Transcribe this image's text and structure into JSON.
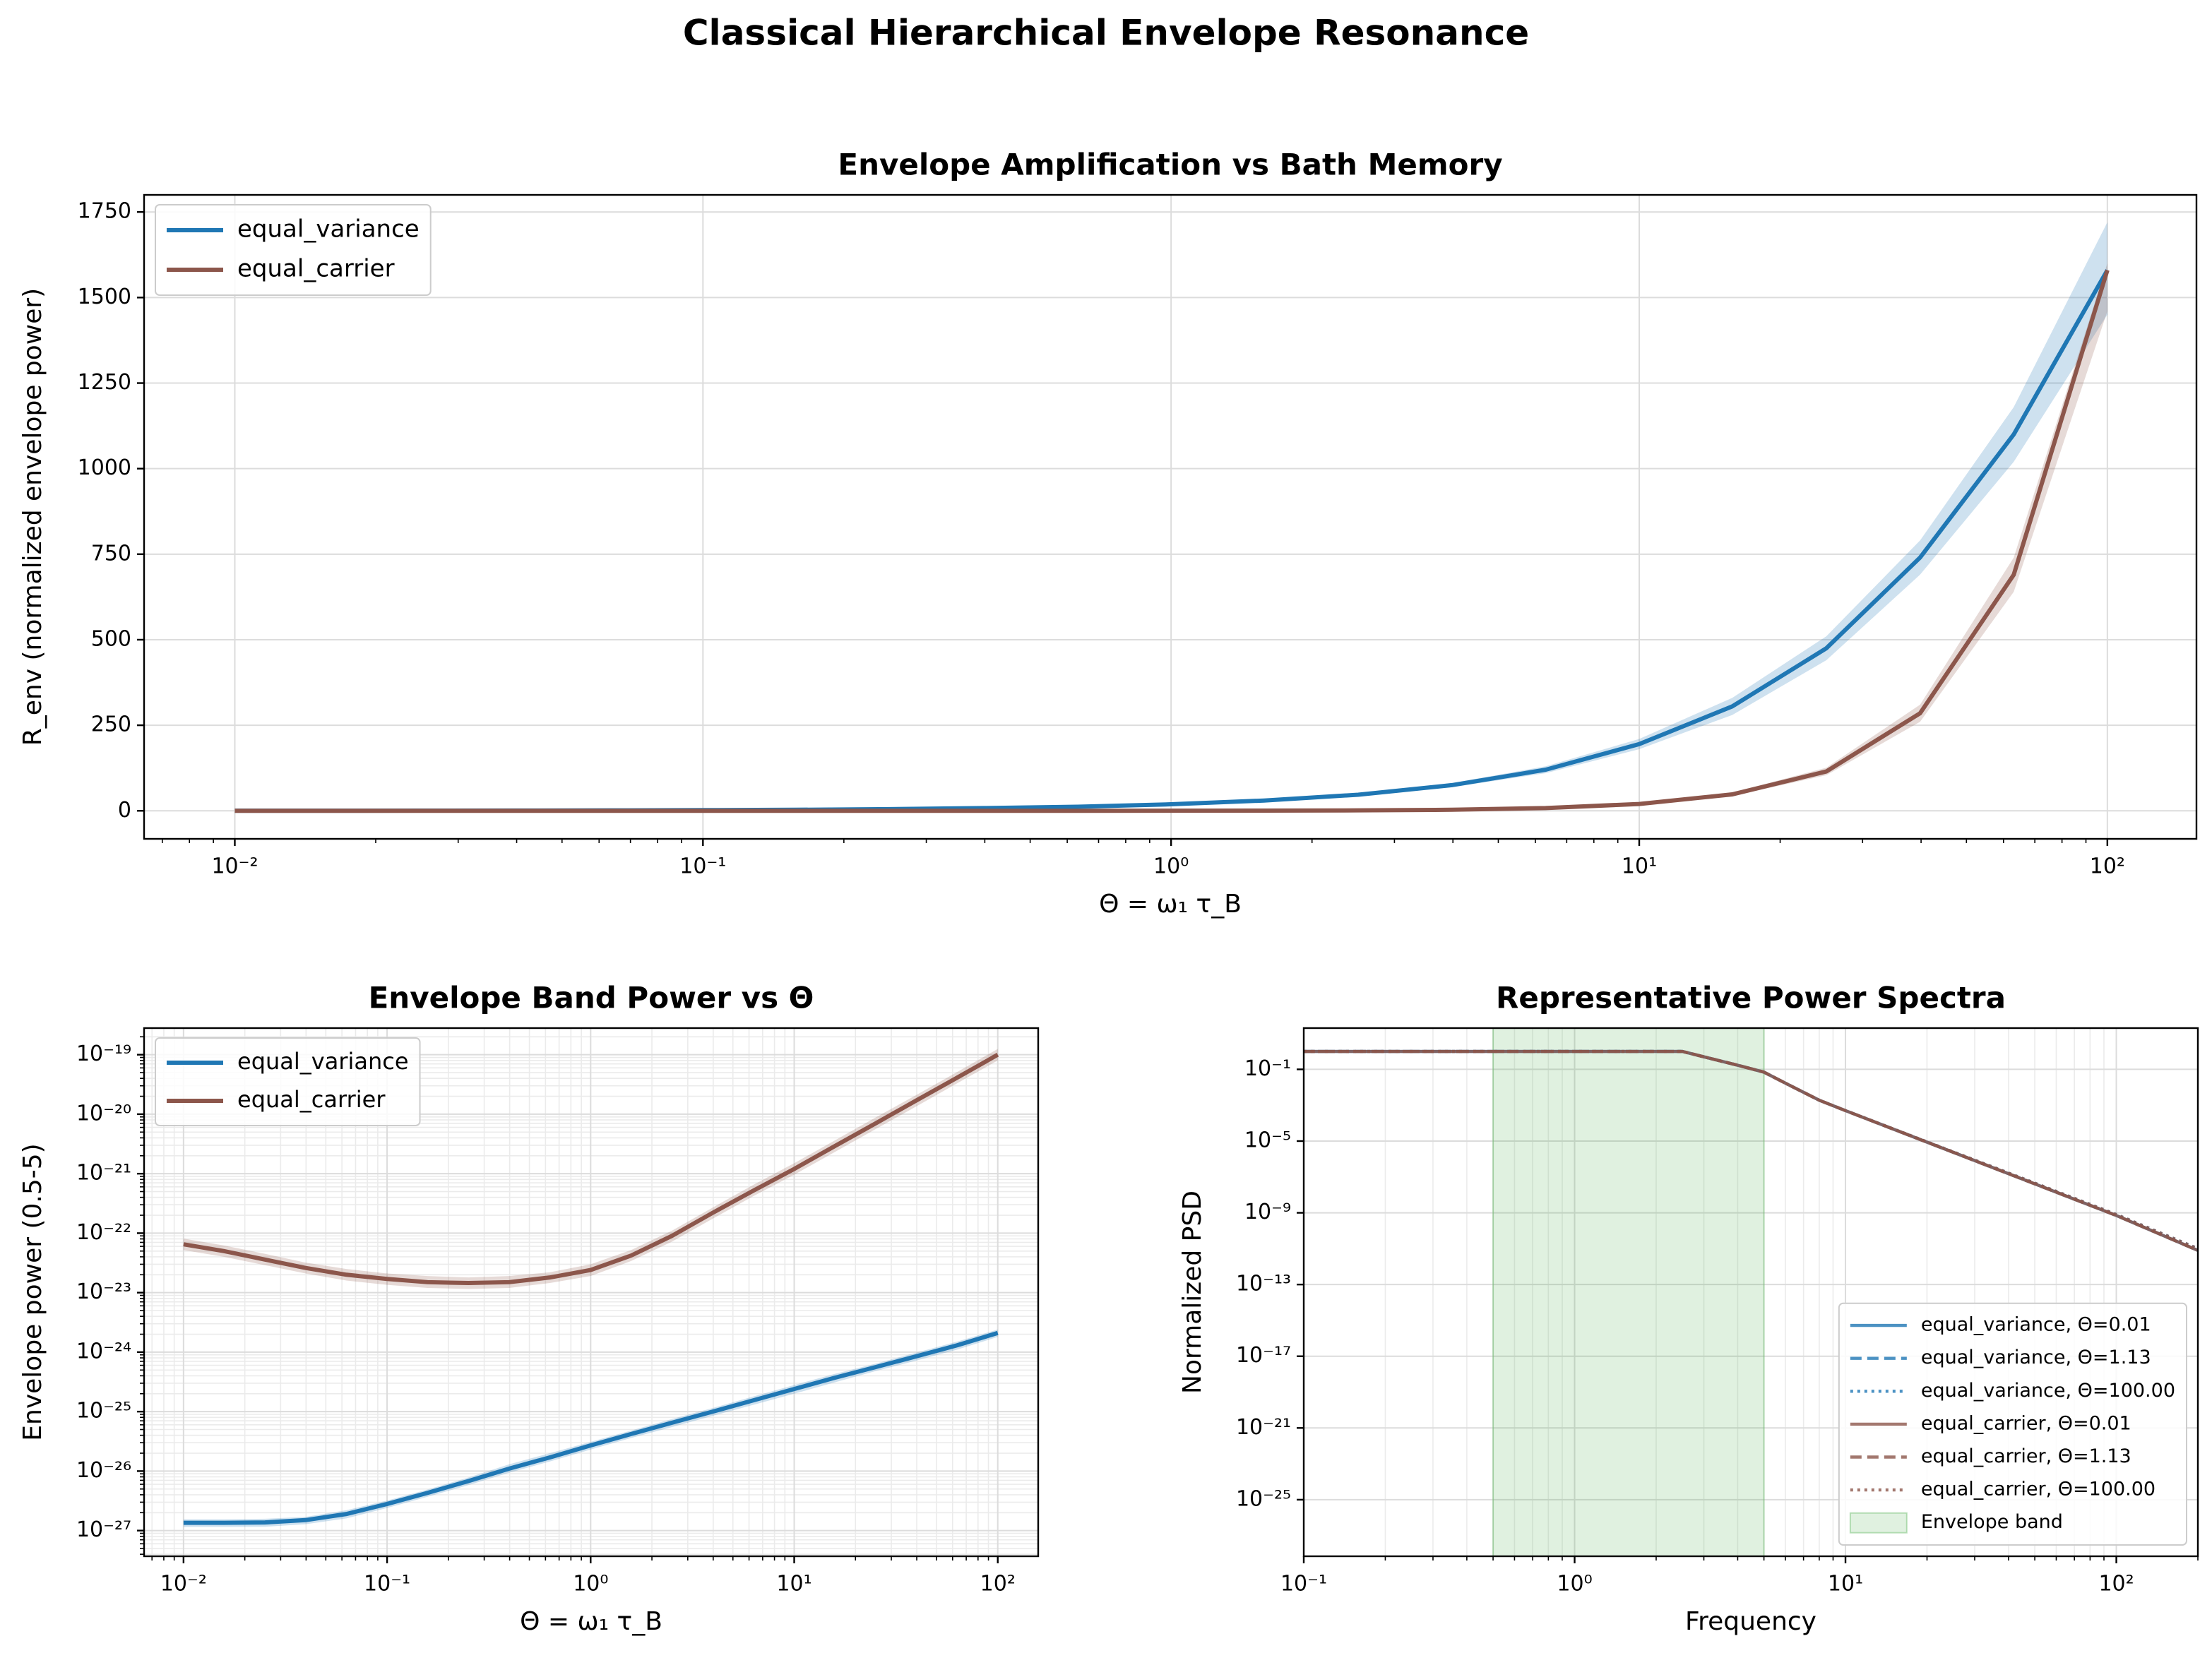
{
  "title": "Classical Hierarchical Envelope Resonance",
  "chart_data": [
    {
      "type": "line",
      "title": "Envelope Amplification vs Bath Memory",
      "xlabel": "Θ = ω₁ τ_B",
      "ylabel": "R_env (normalized envelope power)",
      "xscale": "log",
      "yscale": "linear",
      "grid": true,
      "minor_ticks": [
        "x"
      ],
      "minor_grid": [],
      "legend": "upper left",
      "xlim": [
        0.0064,
        155
      ],
      "ylim": [
        -82,
        1800
      ],
      "xticks": [
        {
          "value": 0.01,
          "label": "10⁻²"
        },
        {
          "value": 0.1,
          "label": "10⁻¹"
        },
        {
          "value": 1,
          "label": "10⁰"
        },
        {
          "value": 10,
          "label": "10¹"
        },
        {
          "value": 100,
          "label": "10²"
        }
      ],
      "yticks": [
        0,
        250,
        500,
        750,
        1000,
        1250,
        1500,
        1750
      ],
      "x": [
        0.01,
        0.0158,
        0.0251,
        0.0398,
        0.0631,
        0.1,
        0.158,
        0.251,
        0.398,
        0.631,
        1,
        1.58,
        2.51,
        3.98,
        6.31,
        10,
        15.8,
        25.1,
        39.8,
        63.1,
        100
      ],
      "series": [
        {
          "name": "equal_variance",
          "color": "#1f77b4",
          "style": "solid",
          "values": [
            0.2,
            0.3,
            0.5,
            0.8,
            1.2,
            2,
            3,
            5,
            8,
            12,
            19,
            30,
            47,
            75,
            120,
            195,
            305,
            475,
            740,
            1100,
            1580
          ],
          "band_low": [
            0.18,
            0.28,
            0.46,
            0.74,
            1.1,
            1.8,
            2.8,
            4.6,
            7.4,
            11,
            17.5,
            27.5,
            43,
            69,
            110,
            180,
            280,
            440,
            690,
            1020,
            1450
          ],
          "band_high": [
            0.22,
            0.33,
            0.55,
            0.87,
            1.3,
            2.2,
            3.3,
            5.5,
            8.7,
            13,
            20.5,
            32.5,
            51,
            81,
            130,
            210,
            330,
            510,
            790,
            1180,
            1720
          ]
        },
        {
          "name": "equal_carrier",
          "color": "#8c564b",
          "style": "solid",
          "values": [
            0,
            0,
            0,
            0,
            0,
            0,
            0,
            0,
            0.01,
            0.05,
            0.2,
            0.5,
            1.2,
            3,
            8,
            20,
            48,
            115,
            285,
            690,
            1580
          ],
          "band_low": [
            0,
            0,
            0,
            0,
            0,
            0,
            0,
            0,
            0.01,
            0.04,
            0.18,
            0.45,
            1.1,
            2.7,
            7.2,
            18,
            43,
            104,
            260,
            640,
            1460
          ],
          "band_high": [
            0,
            0,
            0,
            0,
            0,
            0,
            0,
            0.01,
            0.02,
            0.06,
            0.22,
            0.55,
            1.3,
            3.3,
            8.8,
            22,
            53,
            126,
            310,
            740,
            1600
          ]
        }
      ]
    },
    {
      "type": "line",
      "title": "Envelope Band Power vs Θ",
      "xlabel": "Θ = ω₁ τ_B",
      "ylabel": "Envelope power (0.5-5)",
      "xscale": "log",
      "yscale": "log",
      "grid": true,
      "minor_ticks": [
        "x",
        "y"
      ],
      "minor_grid": [
        "x",
        "y"
      ],
      "legend": "upper left",
      "xlim": [
        0.0064,
        158
      ],
      "ylim": [
        3.7e-28,
        2.8e-19
      ],
      "xticks": [
        {
          "value": 0.01,
          "label": "10⁻²"
        },
        {
          "value": 0.1,
          "label": "10⁻¹"
        },
        {
          "value": 1,
          "label": "10⁰"
        },
        {
          "value": 10,
          "label": "10¹"
        },
        {
          "value": 100,
          "label": "10²"
        }
      ],
      "yticks": [
        {
          "value": 1e-27,
          "label": "10⁻²⁷"
        },
        {
          "value": 1e-26,
          "label": "10⁻²⁶"
        },
        {
          "value": 1e-25,
          "label": "10⁻²⁵"
        },
        {
          "value": 1e-24,
          "label": "10⁻²⁴"
        },
        {
          "value": 1e-23,
          "label": "10⁻²³"
        },
        {
          "value": 1e-22,
          "label": "10⁻²²"
        },
        {
          "value": 1e-21,
          "label": "10⁻²¹"
        },
        {
          "value": 1e-20,
          "label": "10⁻²⁰"
        },
        {
          "value": 1e-19,
          "label": "10⁻¹⁹"
        }
      ],
      "x": [
        0.01,
        0.0158,
        0.0251,
        0.0398,
        0.0631,
        0.1,
        0.158,
        0.251,
        0.398,
        0.631,
        1,
        1.58,
        2.51,
        3.98,
        6.31,
        10,
        15.8,
        25.1,
        39.8,
        63.1,
        100
      ],
      "series": [
        {
          "name": "equal_variance",
          "color": "#1f77b4",
          "style": "solid",
          "values": [
            1.35e-27,
            1.35e-27,
            1.37e-27,
            1.5e-27,
            1.9e-27,
            2.8e-27,
            4.3e-27,
            6.8e-27,
            1.1e-26,
            1.7e-26,
            2.7e-26,
            4.2e-26,
            6.5e-26,
            1e-25,
            1.55e-25,
            2.4e-25,
            3.7e-25,
            5.6e-25,
            8.5e-25,
            1.3e-24,
            2.1e-24
          ],
          "band_low": [
            1.15e-27,
            1.15e-27,
            1.16e-27,
            1.28e-27,
            1.6e-27,
            2.4e-27,
            3.7e-27,
            5.8e-27,
            9.4e-27,
            1.45e-26,
            2.3e-26,
            3.6e-26,
            5.5e-26,
            8.5e-26,
            1.3e-25,
            2e-25,
            3.1e-25,
            4.8e-25,
            7.2e-25,
            1.1e-24,
            1.8e-24
          ],
          "band_high": [
            1.55e-27,
            1.55e-27,
            1.58e-27,
            1.7e-27,
            2.2e-27,
            3.2e-27,
            4.9e-27,
            7.8e-27,
            1.3e-26,
            2e-26,
            3.1e-26,
            4.8e-26,
            7.5e-26,
            1.15e-25,
            1.8e-25,
            2.8e-25,
            4.3e-25,
            6.4e-25,
            9.8e-25,
            1.5e-24,
            2.4e-24
          ]
        },
        {
          "name": "equal_carrier",
          "color": "#8c564b",
          "style": "solid",
          "values": [
            6.5e-23,
            5e-23,
            3.6e-23,
            2.6e-23,
            2e-23,
            1.7e-23,
            1.5e-23,
            1.45e-23,
            1.5e-23,
            1.8e-23,
            2.4e-23,
            4.2e-23,
            9e-23,
            2.2e-22,
            5.2e-22,
            1.2e-21,
            2.9e-21,
            7e-21,
            1.7e-20,
            4.1e-20,
            1e-19
          ],
          "band_low": [
            5.2e-23,
            4e-23,
            2.9e-23,
            2.1e-23,
            1.6e-23,
            1.35e-23,
            1.2e-23,
            1.15e-23,
            1.2e-23,
            1.45e-23,
            1.9e-23,
            3.4e-23,
            7.2e-23,
            1.75e-22,
            4.2e-22,
            9.6e-22,
            2.3e-21,
            5.6e-21,
            1.35e-20,
            3.3e-20,
            8e-20
          ],
          "band_high": [
            8.1e-23,
            6.2e-23,
            4.5e-23,
            3.2e-23,
            2.5e-23,
            2.1e-23,
            1.9e-23,
            1.8e-23,
            1.9e-23,
            2.2e-23,
            3e-23,
            5.2e-23,
            1.1e-22,
            2.7e-22,
            6.5e-22,
            1.5e-21,
            3.6e-21,
            8.8e-21,
            2.1e-20,
            5.1e-20,
            1.25e-19
          ]
        }
      ]
    },
    {
      "type": "line",
      "title": "Representative Power Spectra",
      "xlabel": "Frequency",
      "ylabel": "Normalized PSD",
      "xscale": "log",
      "yscale": "log",
      "grid": true,
      "minor_ticks": [
        "x"
      ],
      "minor_grid": [
        "x"
      ],
      "legend": "lower right",
      "xlim": [
        0.1,
        200
      ],
      "ylim": [
        7e-29,
        20
      ],
      "xticks": [
        {
          "value": 0.1,
          "label": "10⁻¹"
        },
        {
          "value": 1,
          "label": "10⁰"
        },
        {
          "value": 10,
          "label": "10¹"
        },
        {
          "value": 100,
          "label": "10²"
        }
      ],
      "yticks": [
        {
          "value": 1e-25,
          "label": "10⁻²⁵"
        },
        {
          "value": 1e-21,
          "label": "10⁻²¹"
        },
        {
          "value": 1e-17,
          "label": "10⁻¹⁷"
        },
        {
          "value": 1e-13,
          "label": "10⁻¹³"
        },
        {
          "value": 1e-09,
          "label": "10⁻⁹"
        },
        {
          "value": 1e-05,
          "label": "10⁻⁵"
        },
        {
          "value": 0.1,
          "label": "10⁻¹"
        }
      ],
      "x": [
        0.1,
        0.5,
        1,
        2,
        2.5,
        3,
        4,
        5,
        6,
        8,
        10,
        20,
        50,
        100,
        200
      ],
      "series": [
        {
          "name": "equal_variance, Θ=0.01",
          "color": "#1f77b4",
          "style": "solid",
          "values": [
            1,
            1,
            1,
            1,
            1,
            0.5,
            0.17,
            0.07,
            0.017,
            0.0019,
            0.0005,
            8.7e-06,
            4.1e-08,
            7.1e-10,
            8e-12
          ]
        },
        {
          "name": "equal_variance, Θ=1.13",
          "color": "#1f77b4",
          "style": "dashed",
          "values": [
            1,
            1,
            1,
            1,
            1,
            0.5,
            0.17,
            0.07,
            0.017,
            0.0019,
            0.0005,
            8.7e-06,
            4.1e-08,
            7.1e-10,
            8e-12
          ]
        },
        {
          "name": "equal_variance, Θ=100.00",
          "color": "#1f77b4",
          "style": "dotted",
          "values": [
            1,
            1,
            1,
            1,
            1,
            0.5,
            0.17,
            0.07,
            0.017,
            0.0019,
            0.0005,
            9e-06,
            4.5e-08,
            8e-10,
            1e-11
          ]
        },
        {
          "name": "equal_carrier, Θ=0.01",
          "color": "#8c564b",
          "style": "solid",
          "values": [
            1,
            1,
            1,
            1,
            1,
            0.5,
            0.17,
            0.07,
            0.017,
            0.0019,
            0.0005,
            8.7e-06,
            4.1e-08,
            7.1e-10,
            8e-12
          ]
        },
        {
          "name": "equal_carrier, Θ=1.13",
          "color": "#8c564b",
          "style": "dashed",
          "values": [
            1,
            1,
            1,
            1,
            1,
            0.5,
            0.17,
            0.07,
            0.017,
            0.0019,
            0.0005,
            8.7e-06,
            4.1e-08,
            7.1e-10,
            8e-12
          ]
        },
        {
          "name": "equal_carrier, Θ=100.00",
          "color": "#8c564b",
          "style": "dotted",
          "values": [
            1,
            1,
            1,
            1,
            1,
            0.5,
            0.17,
            0.07,
            0.017,
            0.0019,
            0.0005,
            9e-06,
            4.5e-08,
            8e-10,
            1e-11
          ]
        }
      ],
      "span": {
        "name": "Envelope band",
        "x": [
          0.5,
          5
        ],
        "color": "#2ca02c"
      }
    }
  ]
}
